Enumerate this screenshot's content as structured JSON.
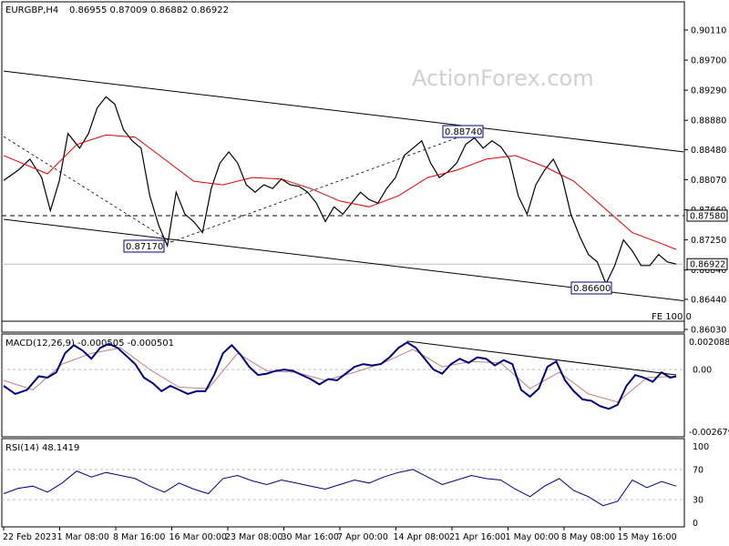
{
  "header": {
    "symbol": "EURGBP,H4",
    "ohlc": "0.86955 0.87009 0.86882 0.86922"
  },
  "watermark": "ActionForex.com",
  "main_axis": {
    "ticks": [
      "0.90110",
      "0.89700",
      "0.89290",
      "0.88880",
      "0.88480",
      "0.88070",
      "0.87660",
      "0.87250",
      "0.86840",
      "0.86440",
      "0.86030"
    ]
  },
  "levels": {
    "resistance_label": "0.87580",
    "price_label": "0.86922"
  },
  "annotations": {
    "low1": "0.87170",
    "high1": "0.88740",
    "low2": "0.86600",
    "fe": "FE 100.0"
  },
  "macd": {
    "title": "MACD(12,26,9) -0.000505 -0.000501",
    "ticks": [
      "0.002088",
      "0.00",
      "-0.002679"
    ]
  },
  "rsi": {
    "title": "RSI(14) 48.1419",
    "ticks": [
      "100",
      "70",
      "30",
      "0"
    ]
  },
  "x_axis": {
    "labels": [
      "22 Feb 2023",
      "1 Mar 08:00",
      "8 Mar 16:00",
      "16 Mar 00:00",
      "23 Mar 08:00",
      "30 Mar 16:00",
      "7 Apr 00:00",
      "14 Apr 08:00",
      "21 Apr 16:00",
      "1 May 00:00",
      "8 May 08:00",
      "15 May 16:00"
    ]
  },
  "colors": {
    "price": "#000000",
    "ma": "#e00000",
    "macd": "#000080",
    "signal": "#c08080",
    "grid": "#c0c0c0"
  },
  "chart_data": {
    "type": "line",
    "title": "EURGBP,H4",
    "price_range": [
      0.8603,
      0.903
    ],
    "close_path": [
      [
        0,
        0.8806
      ],
      [
        5,
        0.882
      ],
      [
        9,
        0.8835
      ],
      [
        13,
        0.881
      ],
      [
        16,
        0.8765
      ],
      [
        19,
        0.8805
      ],
      [
        22,
        0.887
      ],
      [
        26,
        0.885
      ],
      [
        29,
        0.887
      ],
      [
        32,
        0.8905
      ],
      [
        35,
        0.892
      ],
      [
        38,
        0.891
      ],
      [
        41,
        0.8875
      ],
      [
        44,
        0.886
      ],
      [
        47,
        0.885
      ],
      [
        50,
        0.8785
      ],
      [
        53,
        0.8745
      ],
      [
        56,
        0.8717
      ],
      [
        59,
        0.879
      ],
      [
        62,
        0.876
      ],
      [
        65,
        0.875
      ],
      [
        68,
        0.8735
      ],
      [
        71,
        0.8795
      ],
      [
        74,
        0.883
      ],
      [
        77,
        0.8845
      ],
      [
        80,
        0.883
      ],
      [
        83,
        0.88
      ],
      [
        86,
        0.879
      ],
      [
        89,
        0.88
      ],
      [
        92,
        0.8795
      ],
      [
        95,
        0.8808
      ],
      [
        98,
        0.88
      ],
      [
        101,
        0.8798
      ],
      [
        104,
        0.879
      ],
      [
        107,
        0.8775
      ],
      [
        110,
        0.875
      ],
      [
        113,
        0.877
      ],
      [
        116,
        0.876
      ],
      [
        119,
        0.8775
      ],
      [
        122,
        0.879
      ],
      [
        125,
        0.878
      ],
      [
        128,
        0.8775
      ],
      [
        131,
        0.8795
      ],
      [
        134,
        0.881
      ],
      [
        137,
        0.884
      ],
      [
        140,
        0.885
      ],
      [
        143,
        0.886
      ],
      [
        146,
        0.883
      ],
      [
        149,
        0.881
      ],
      [
        152,
        0.8818
      ],
      [
        155,
        0.883
      ],
      [
        158,
        0.8855
      ],
      [
        161,
        0.8864
      ],
      [
        164,
        0.885
      ],
      [
        167,
        0.886
      ],
      [
        170,
        0.8852
      ],
      [
        173,
        0.8835
      ],
      [
        176,
        0.8785
      ],
      [
        179,
        0.876
      ],
      [
        182,
        0.88
      ],
      [
        185,
        0.882
      ],
      [
        188,
        0.8835
      ],
      [
        191,
        0.881
      ],
      [
        194,
        0.876
      ],
      [
        197,
        0.873
      ],
      [
        200,
        0.8705
      ],
      [
        203,
        0.8695
      ],
      [
        206,
        0.8665
      ],
      [
        209,
        0.869
      ],
      [
        212,
        0.8725
      ],
      [
        215,
        0.871
      ],
      [
        218,
        0.869
      ],
      [
        221,
        0.869
      ],
      [
        224,
        0.8705
      ],
      [
        227,
        0.8695
      ],
      [
        230,
        0.8692
      ]
    ],
    "ma_path": [
      [
        0,
        0.884
      ],
      [
        15,
        0.8815
      ],
      [
        25,
        0.8855
      ],
      [
        35,
        0.8868
      ],
      [
        45,
        0.8865
      ],
      [
        55,
        0.8835
      ],
      [
        65,
        0.8805
      ],
      [
        75,
        0.88
      ],
      [
        85,
        0.881
      ],
      [
        95,
        0.8808
      ],
      [
        105,
        0.8795
      ],
      [
        115,
        0.8778
      ],
      [
        125,
        0.877
      ],
      [
        135,
        0.8785
      ],
      [
        145,
        0.881
      ],
      [
        155,
        0.882
      ],
      [
        165,
        0.8835
      ],
      [
        175,
        0.884
      ],
      [
        185,
        0.8825
      ],
      [
        195,
        0.8805
      ],
      [
        205,
        0.877
      ],
      [
        215,
        0.8735
      ],
      [
        225,
        0.872
      ],
      [
        230,
        0.8712
      ]
    ],
    "channel_upper": [
      [
        0,
        0.8955
      ],
      [
        230,
        0.8845
      ]
    ],
    "channel_lower": [
      [
        0,
        0.8753
      ],
      [
        230,
        0.8642
      ]
    ],
    "resistance_level": 0.8758,
    "macd_range": [
      -0.003,
      0.0022
    ],
    "macd_path": [
      [
        0,
        -0.0012
      ],
      [
        4,
        -0.0018
      ],
      [
        8,
        -0.0015
      ],
      [
        12,
        -0.0005
      ],
      [
        15,
        -0.0006
      ],
      [
        18,
        -0.0002
      ],
      [
        21,
        0.0012
      ],
      [
        24,
        0.0018
      ],
      [
        27,
        0.0014
      ],
      [
        30,
        0.0008
      ],
      [
        33,
        0.0016
      ],
      [
        36,
        0.0019
      ],
      [
        39,
        0.0016
      ],
      [
        42,
        0.001
      ],
      [
        45,
        0.0004
      ],
      [
        48,
        -0.0006
      ],
      [
        51,
        -0.001
      ],
      [
        54,
        -0.0016
      ],
      [
        57,
        -0.0012
      ],
      [
        60,
        -0.0015
      ],
      [
        63,
        -0.0018
      ],
      [
        66,
        -0.0016
      ],
      [
        69,
        -0.0016
      ],
      [
        72,
        -0.0004
      ],
      [
        75,
        0.0012
      ],
      [
        78,
        0.0018
      ],
      [
        81,
        0.0011
      ],
      [
        84,
        0.0002
      ],
      [
        87,
        -0.0004
      ],
      [
        90,
        -0.0003
      ],
      [
        93,
        -0.0001
      ],
      [
        96,
        0.0
      ],
      [
        99,
        -0.0001
      ],
      [
        102,
        -0.0004
      ],
      [
        105,
        -0.0007
      ],
      [
        108,
        -0.0011
      ],
      [
        111,
        -0.0007
      ],
      [
        114,
        -0.0008
      ],
      [
        117,
        -0.0003
      ],
      [
        120,
        0.0002
      ],
      [
        123,
        0.0004
      ],
      [
        126,
        0.0003
      ],
      [
        129,
        0.0004
      ],
      [
        132,
        0.0009
      ],
      [
        135,
        0.0016
      ],
      [
        138,
        0.002
      ],
      [
        141,
        0.0016
      ],
      [
        144,
        0.0008
      ],
      [
        147,
        0.0
      ],
      [
        150,
        -0.0003
      ],
      [
        153,
        0.0004
      ],
      [
        156,
        0.0008
      ],
      [
        159,
        0.0005
      ],
      [
        162,
        0.0009
      ],
      [
        165,
        0.0008
      ],
      [
        168,
        0.0003
      ],
      [
        171,
        0.0007
      ],
      [
        174,
        0.0004
      ],
      [
        177,
        -0.0015
      ],
      [
        180,
        -0.002
      ],
      [
        183,
        -0.0014
      ],
      [
        186,
        0.0002
      ],
      [
        189,
        0.0006
      ],
      [
        192,
        -0.0008
      ],
      [
        195,
        -0.0016
      ],
      [
        198,
        -0.0022
      ],
      [
        201,
        -0.0023
      ],
      [
        204,
        -0.0027
      ],
      [
        207,
        -0.0029
      ],
      [
        210,
        -0.0026
      ],
      [
        213,
        -0.0012
      ],
      [
        216,
        -0.0004
      ],
      [
        219,
        -0.0006
      ],
      [
        222,
        -0.0009
      ],
      [
        225,
        -0.0002
      ],
      [
        228,
        -0.0006
      ],
      [
        230,
        -0.0005
      ]
    ],
    "signal_path": [
      [
        0,
        -0.0008
      ],
      [
        10,
        -0.0015
      ],
      [
        20,
        0.0004
      ],
      [
        30,
        0.0012
      ],
      [
        40,
        0.0016
      ],
      [
        50,
        0.0
      ],
      [
        60,
        -0.0013
      ],
      [
        70,
        -0.0014
      ],
      [
        80,
        0.0012
      ],
      [
        90,
        -0.0001
      ],
      [
        100,
        -0.0002
      ],
      [
        110,
        -0.0008
      ],
      [
        120,
        -0.0002
      ],
      [
        130,
        0.0005
      ],
      [
        140,
        0.0015
      ],
      [
        150,
        0.0002
      ],
      [
        160,
        0.0006
      ],
      [
        170,
        0.0005
      ],
      [
        180,
        -0.0014
      ],
      [
        190,
        -0.0002
      ],
      [
        200,
        -0.0018
      ],
      [
        210,
        -0.0024
      ],
      [
        220,
        -0.0006
      ],
      [
        230,
        -0.0005
      ]
    ],
    "macd_trendline": [
      [
        138,
        0.0021
      ],
      [
        230,
        -0.0004
      ]
    ],
    "rsi_range": [
      0,
      100
    ],
    "rsi_path": [
      [
        0,
        38
      ],
      [
        5,
        45
      ],
      [
        10,
        48
      ],
      [
        15,
        40
      ],
      [
        20,
        52
      ],
      [
        25,
        68
      ],
      [
        30,
        60
      ],
      [
        35,
        66
      ],
      [
        40,
        62
      ],
      [
        45,
        58
      ],
      [
        50,
        48
      ],
      [
        55,
        40
      ],
      [
        60,
        52
      ],
      [
        65,
        44
      ],
      [
        70,
        38
      ],
      [
        75,
        58
      ],
      [
        80,
        62
      ],
      [
        85,
        55
      ],
      [
        90,
        50
      ],
      [
        95,
        56
      ],
      [
        100,
        52
      ],
      [
        105,
        48
      ],
      [
        110,
        44
      ],
      [
        115,
        50
      ],
      [
        120,
        56
      ],
      [
        125,
        52
      ],
      [
        130,
        60
      ],
      [
        135,
        66
      ],
      [
        140,
        70
      ],
      [
        145,
        60
      ],
      [
        150,
        50
      ],
      [
        155,
        56
      ],
      [
        160,
        62
      ],
      [
        165,
        58
      ],
      [
        170,
        56
      ],
      [
        175,
        44
      ],
      [
        180,
        34
      ],
      [
        185,
        48
      ],
      [
        190,
        58
      ],
      [
        195,
        42
      ],
      [
        200,
        34
      ],
      [
        205,
        22
      ],
      [
        210,
        28
      ],
      [
        215,
        56
      ],
      [
        220,
        46
      ],
      [
        225,
        54
      ],
      [
        230,
        48
      ]
    ],
    "x_count": 230
  }
}
